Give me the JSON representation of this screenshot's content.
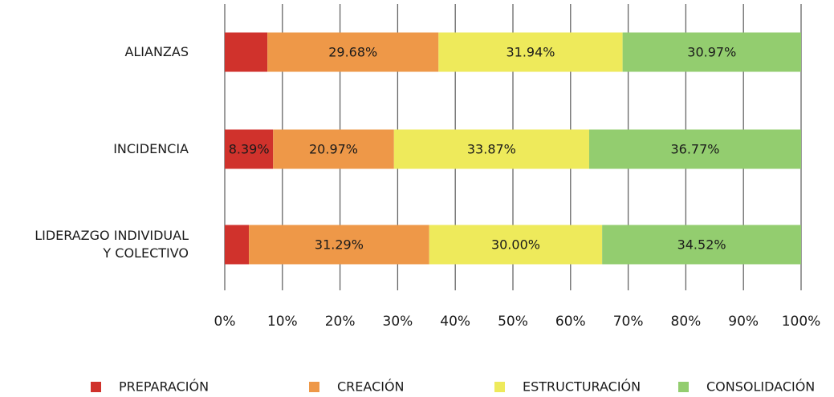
{
  "chart_data": {
    "type": "stacked_barh",
    "categories": [
      "ALIANZAS",
      "INCIDENCIA",
      "LIDERAZGO INDIVIDUAL\nY COLECTIVO"
    ],
    "series": [
      {
        "name": "PREPARACIÓN",
        "color": "#d0322c",
        "values": [
          7.41,
          8.39,
          4.19
        ],
        "value_labels": [
          null,
          "8.39%",
          null
        ]
      },
      {
        "name": "CREACIÓN",
        "color": "#ee9848",
        "values": [
          29.68,
          20.97,
          31.29
        ],
        "value_labels": [
          "29.68%",
          "20.97%",
          "31.29%"
        ]
      },
      {
        "name": "ESTRUCTURACIÓN",
        "color": "#eeea5b",
        "values": [
          31.94,
          33.87,
          30.0
        ],
        "value_labels": [
          "31.94%",
          "33.87%",
          "30.00%"
        ]
      },
      {
        "name": "CONSOLIDACIÓN",
        "color": "#93cd6f",
        "values": [
          30.97,
          36.77,
          34.52
        ],
        "value_labels": [
          "30.97%",
          "36.77%",
          "34.52%"
        ]
      }
    ],
    "xlim": [
      0,
      100
    ],
    "xticks": [
      {
        "value": 0,
        "label": "0%"
      },
      {
        "value": 10,
        "label": "10%"
      },
      {
        "value": 20,
        "label": "20%"
      },
      {
        "value": 30,
        "label": "30%"
      },
      {
        "value": 40,
        "label": "40%"
      },
      {
        "value": 50,
        "label": "50%"
      },
      {
        "value": 60,
        "label": "60%"
      },
      {
        "value": 70,
        "label": "70%"
      },
      {
        "value": 80,
        "label": "80%"
      },
      {
        "value": 90,
        "label": "90%"
      },
      {
        "value": 100,
        "label": "100%"
      }
    ],
    "grid": true,
    "legend": "bottom"
  }
}
